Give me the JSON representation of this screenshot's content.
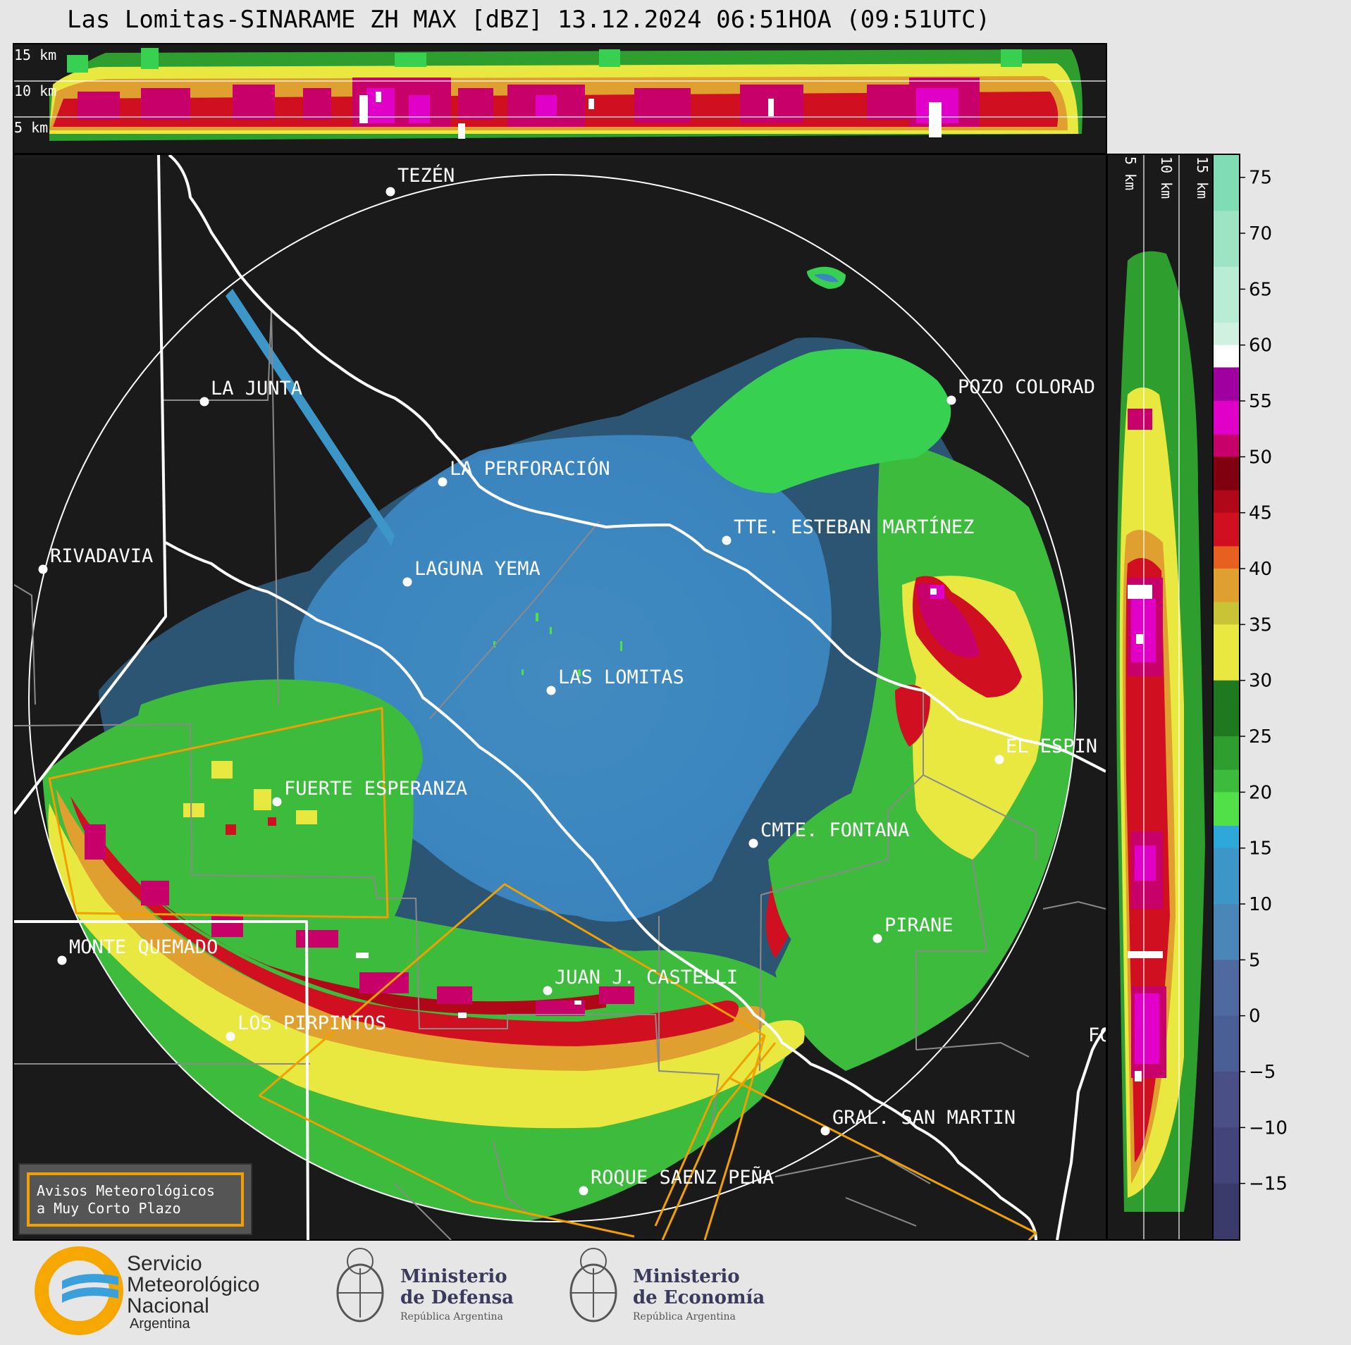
{
  "title": "Las Lomitas-SINARAME ZH MAX [dBZ] 13.12.2024 06:51HOA (09:51UTC)",
  "height_labels": {
    "top_panel": [
      "15 km",
      "10 km",
      "5 km"
    ],
    "side_panel": [
      "5 km",
      "10 km",
      "15 km"
    ]
  },
  "colorbar": {
    "ticks": [
      "75",
      "70",
      "65",
      "60",
      "55",
      "50",
      "45",
      "40",
      "35",
      "30",
      "25",
      "20",
      "15",
      "10",
      "5",
      "0",
      "−5",
      "−10",
      "−15"
    ],
    "colors": [
      "#3b3b6b",
      "#4a4f85",
      "#4f6aa0",
      "#4a86b8",
      "#3c96c8",
      "#2ea8d8",
      "#38d050",
      "#52e048",
      "#3cbb3c",
      "#2e9e2e",
      "#1f7a1f",
      "#e8e840",
      "#c9c436",
      "#e0a030",
      "#e86020",
      "#d01020",
      "#b00818",
      "#800010",
      "#c8006a",
      "#e000c8",
      "#a000a0",
      "#ffffff",
      "#d0f0e0",
      "#b8ecd4",
      "#9ce4c4",
      "#80dcb4"
    ],
    "color_names": [
      "no-data-blue",
      "light-blue",
      "sky-blue",
      "green",
      "dark-green",
      "yellow",
      "orange",
      "red",
      "dark-red",
      "magenta",
      "purple",
      "white",
      "mint"
    ]
  },
  "map": {
    "localities": [
      {
        "name": "TEZÉN"
      },
      {
        "name": "LA JUNTA"
      },
      {
        "name": "POZO COLORAD"
      },
      {
        "name": "LA PERFORACIÓN"
      },
      {
        "name": "TTE. ESTEBAN MARTÍNEZ"
      },
      {
        "name": "RIVADAVIA"
      },
      {
        "name": "LAGUNA YEMA"
      },
      {
        "name": "LAS LOMITAS"
      },
      {
        "name": "EL ESPIN"
      },
      {
        "name": "FUERTE ESPERANZA"
      },
      {
        "name": "CMTE. FONTANA"
      },
      {
        "name": "PIRANE"
      },
      {
        "name": "MONTE QUEMADO"
      },
      {
        "name": "JUAN J. CASTELLI"
      },
      {
        "name": "LOS PIRPINTOS"
      },
      {
        "name": "GRAL. SAN MARTIN"
      },
      {
        "name": "ROQUE SAENZ PEÑA"
      },
      {
        "name": "FO"
      }
    ],
    "legend_box": {
      "line1": "Avisos Meteorológicos",
      "line2": "a Muy Corto Plazo"
    }
  },
  "footer": {
    "smn": {
      "line1": "Servicio",
      "line2": "Meteorológico",
      "line3": "Nacional",
      "line4": "Argentina"
    },
    "defensa": {
      "line1": "Ministerio",
      "line2": "de Defensa",
      "line3": "República Argentina"
    },
    "economia": {
      "line1": "Ministerio",
      "line2": "de Economía",
      "line3": "República Argentina"
    }
  }
}
